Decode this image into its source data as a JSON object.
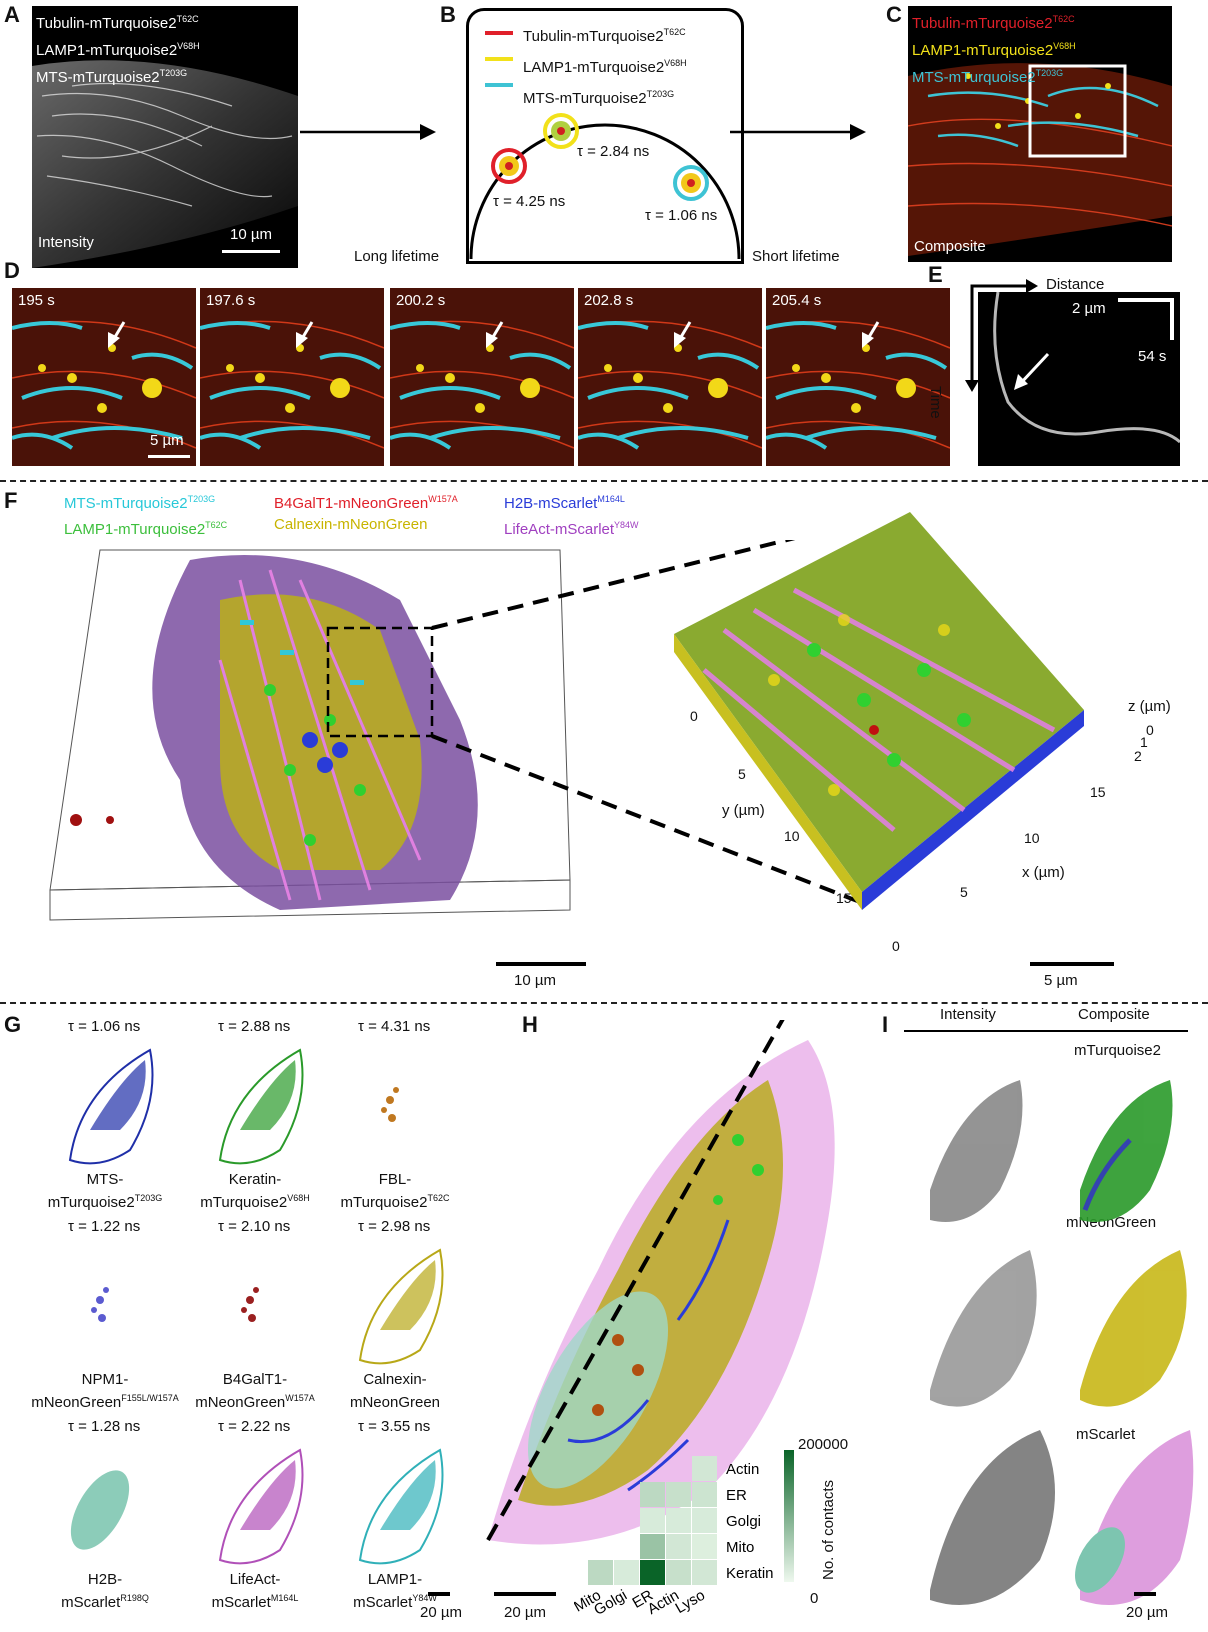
{
  "panels": {
    "A": "A",
    "B": "B",
    "C": "C",
    "D": "D",
    "E": "E",
    "F": "F",
    "G": "G",
    "H": "H",
    "I": "I"
  },
  "A": {
    "lines": [
      {
        "t": "Tubulin-mTurquoise2",
        "s": "T62C"
      },
      {
        "t": "LAMP1-mTurquoise2",
        "s": "V68H"
      },
      {
        "t": "MTS-mTurquoise2",
        "s": "T203G"
      }
    ],
    "label": "Intensity",
    "scale": "10 µm"
  },
  "B": {
    "legend": [
      {
        "t": "Tubulin-mTurquoise2",
        "s": "T62C",
        "color": "#e0202a"
      },
      {
        "t": "LAMP1-mTurquoise2",
        "s": "V68H",
        "color": "#f2e11a"
      },
      {
        "t": "MTS-mTurquoise2",
        "s": "T203G",
        "color": "#3ec3d4"
      }
    ],
    "tau1": "τ = 4.25 ns",
    "tau2": "τ = 2.84 ns",
    "tau3": "τ = 1.06 ns",
    "long": "Long lifetime",
    "short": "Short lifetime"
  },
  "C": {
    "lines": [
      {
        "t": "Tubulin-mTurquoise2",
        "s": "T62C",
        "color": "#e0202a"
      },
      {
        "t": "LAMP1-mTurquoise2",
        "s": "V68H",
        "color": "#f2e11a"
      },
      {
        "t": "MTS-mTurquoise2",
        "s": "T203G",
        "color": "#3ec3d4"
      }
    ],
    "label": "Composite"
  },
  "D": {
    "times": [
      "195 s",
      "197.6 s",
      "200.2 s",
      "202.8 s",
      "205.4 s"
    ],
    "scale": "5 µm"
  },
  "E": {
    "distance": "Distance",
    "time": "Time",
    "scale_x": "2 µm",
    "scale_y": "54 s"
  },
  "F": {
    "legend": [
      {
        "t": "MTS-mTurquoise2",
        "s": "T203G",
        "color": "#28c8d8"
      },
      {
        "t": "B4GalT1-mNeonGreen",
        "s": "W157A",
        "color": "#e0202a"
      },
      {
        "t": "H2B-mScarlet",
        "s": "M164L",
        "color": "#2a3cd8"
      },
      {
        "t": "LAMP1-mTurquoise2",
        "s": "T62C",
        "color": "#3cbf3c"
      },
      {
        "t": "Calnexin-mNeonGreen",
        "s": "",
        "color": "#c8b400"
      },
      {
        "t": "LifeAct-mScarlet",
        "s": "Y84W",
        "color": "#a040c0"
      }
    ],
    "scale_left": "10 µm",
    "scale_right": "5 µm",
    "x_label": "x (µm)",
    "y_label": "y (µm)",
    "z_label": "z (µm)",
    "x_ticks": [
      "0",
      "5",
      "10",
      "15"
    ],
    "y_ticks": [
      "0",
      "5",
      "10",
      "15"
    ],
    "z_ticks": [
      "0",
      "1",
      "2"
    ]
  },
  "G": {
    "items": [
      {
        "tau": "τ = 1.06 ns",
        "n1": "MTS-",
        "n2": "mTurquoise2",
        "s": "T203G",
        "color": "#1f2fa8"
      },
      {
        "tau": "τ = 2.88 ns",
        "n1": "Keratin-",
        "n2": "mTurquoise2",
        "s": "V68H",
        "color": "#2a9a2a"
      },
      {
        "tau": "τ = 4.31 ns",
        "n1": "FBL-",
        "n2": "mTurquoise2",
        "s": "T62C",
        "color": "#c07820"
      },
      {
        "tau": "τ = 1.22 ns",
        "n1": "NPM1-",
        "n2": "mNeonGreen",
        "s": "F155L/W157A",
        "color": "#5b5bd0"
      },
      {
        "tau": "τ = 2.10 ns",
        "n1": "B4GalT1-",
        "n2": "mNeonGreen",
        "s": "W157A",
        "color": "#9a2020"
      },
      {
        "tau": "τ = 2.98 ns",
        "n1": "Calnexin-",
        "n2": "mNeonGreen",
        "s": "",
        "color": "#b8a818"
      },
      {
        "tau": "τ = 1.28 ns",
        "n1": "H2B-",
        "n2": "mScarlet",
        "s": "R198Q",
        "color": "#6fbfa8"
      },
      {
        "tau": "τ = 2.22 ns",
        "n1": "LifeAct-",
        "n2": "mScarlet",
        "s": "M164L",
        "color": "#b050b8"
      },
      {
        "tau": "τ = 3.55 ns",
        "n1": "LAMP1-",
        "n2": "mScarlet",
        "s": "Y84W",
        "color": "#30b0b8"
      }
    ],
    "scale": "20 µm"
  },
  "H": {
    "scale": "20 µm",
    "heatmap": {
      "rows": [
        "Actin",
        "ER",
        "Golgi",
        "Mito",
        "Keratin"
      ],
      "cols": [
        "Mito",
        "Golgi",
        "ER",
        "Actin",
        "Lyso"
      ],
      "values": [
        [
          null,
          null,
          null,
          null,
          20000
        ],
        [
          null,
          null,
          40000,
          30000,
          25000
        ],
        [
          null,
          null,
          15000,
          15000,
          15000
        ],
        [
          null,
          null,
          70000,
          20000,
          10000
        ],
        [
          40000,
          15000,
          200000,
          30000,
          20000
        ]
      ],
      "cbar_max": "200000",
      "cbar_min": "0",
      "cbar_label": "No. of contacts"
    }
  },
  "I": {
    "col1": "Intensity",
    "col2": "Composite",
    "rows": [
      "mTurquoise2",
      "mNeonGreen",
      "mScarlet"
    ],
    "scale": "20 µm"
  }
}
